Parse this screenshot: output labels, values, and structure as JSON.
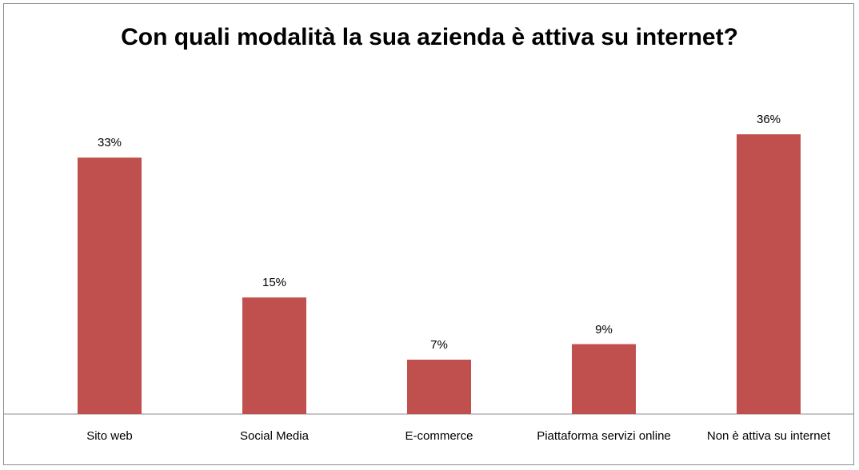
{
  "chart_data": {
    "type": "bar",
    "title": "Con quali modalità la sua azienda è attiva su internet?",
    "categories": [
      "Sito web",
      "Social Media",
      "E-commerce",
      "Piattaforma servizi online",
      "Non è attiva su internet"
    ],
    "values": [
      33,
      15,
      7,
      9,
      36
    ],
    "value_labels": [
      "33%",
      "15%",
      "7%",
      "9%",
      "36%"
    ],
    "color": "#c0504d"
  }
}
